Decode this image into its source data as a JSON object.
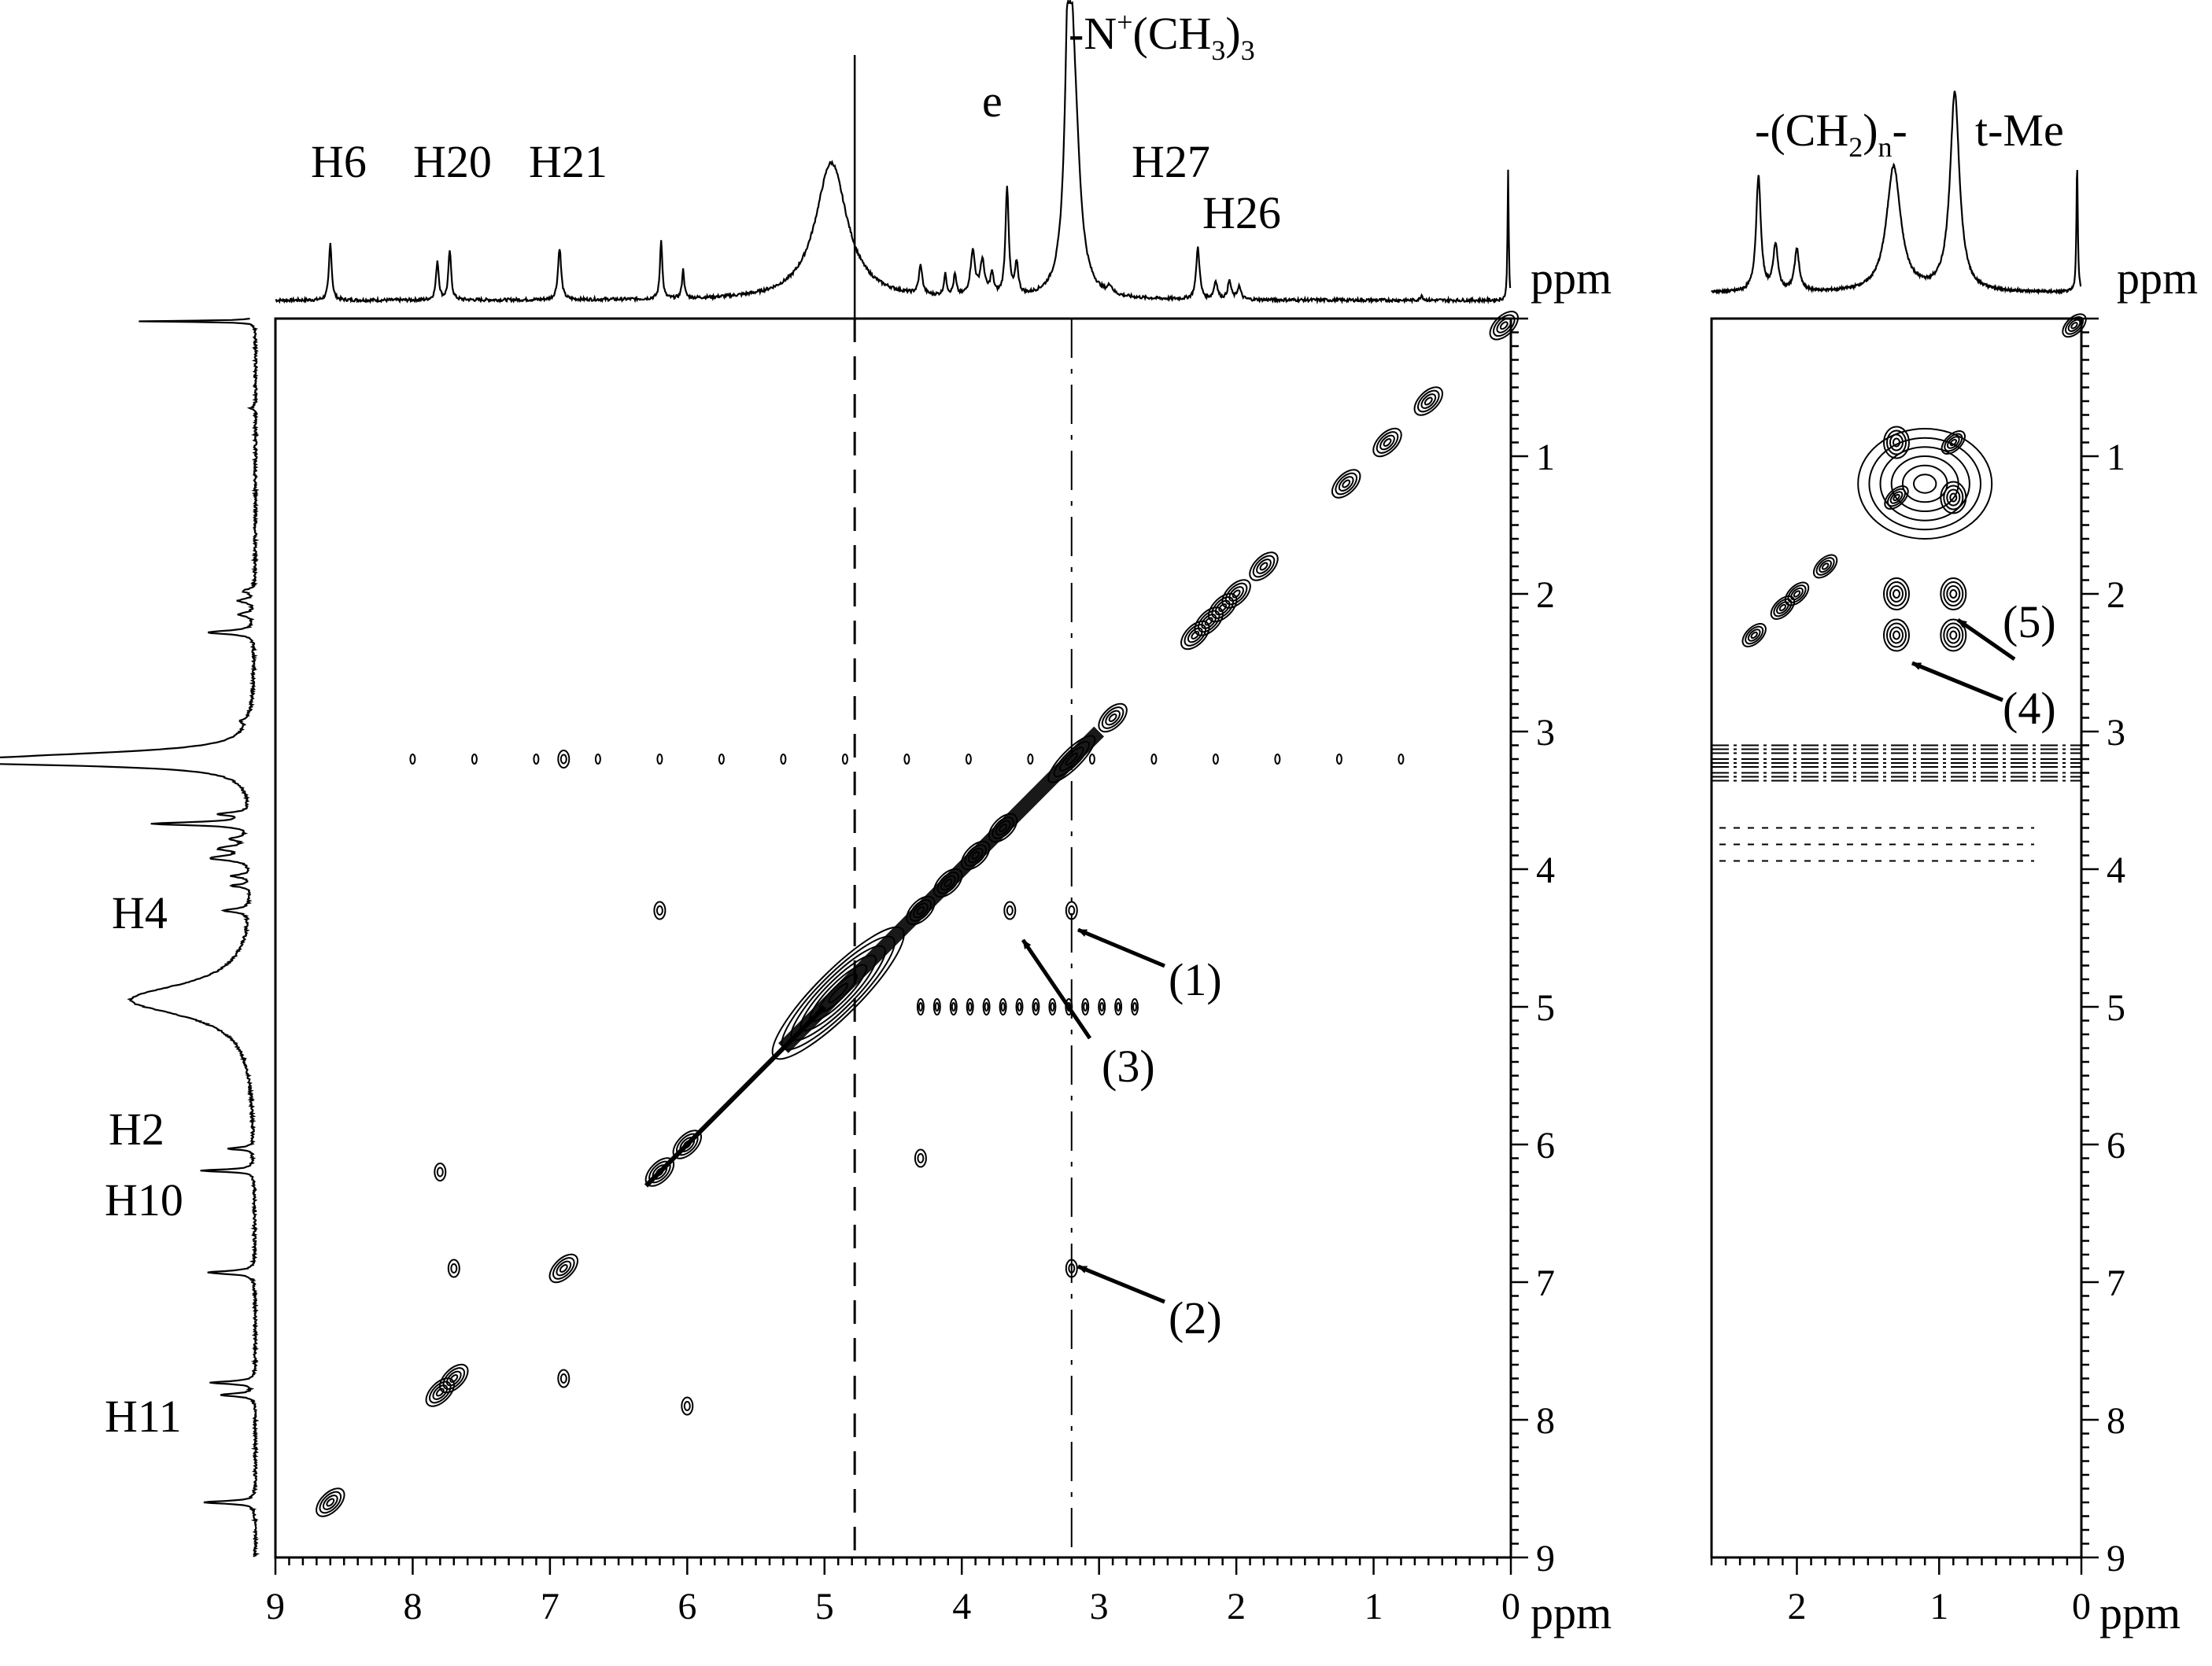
{
  "figure": {
    "axis_unit": "ppm",
    "main_x_ticks": [
      "9",
      "8",
      "7",
      "6",
      "5",
      "4",
      "3",
      "2",
      "1",
      "0"
    ],
    "main_y_ticks": [
      "1",
      "2",
      "3",
      "4",
      "5",
      "6",
      "7",
      "8",
      "9"
    ],
    "inset_x_ticks": [
      "2",
      "1",
      "0"
    ],
    "inset_y_ticks": [
      "1",
      "2",
      "3",
      "4",
      "5",
      "6",
      "7",
      "8",
      "9"
    ]
  },
  "labels": {
    "top_peaks": {
      "h6": "H6",
      "h20": "H20",
      "h21": "H21",
      "e": "e",
      "nme3_prefix": "-N",
      "nme3_sup": "+",
      "nme3_mid": "(CH",
      "nme3_sub1": "3",
      "nme3_close": ")",
      "nme3_sub2": "3",
      "h27": "H27",
      "h26": "H26"
    },
    "inset_peaks": {
      "ch2_prefix": "-(CH",
      "ch2_sub": "2",
      "ch2_close": ")",
      "ch2_n": "n",
      "ch2_dash": "-",
      "tme": "t-Me"
    },
    "left_peaks": {
      "h4": "H4",
      "h2": "H2",
      "h10": "H10",
      "h11": "H11"
    },
    "annotations": {
      "a1": "(1)",
      "a2": "(2)",
      "a3": "(3)",
      "a4": "(4)",
      "a5": "(5)"
    }
  },
  "chart_data": [
    {
      "type": "2d-nmr-contour",
      "title": "",
      "xlabel": "ppm",
      "ylabel": "ppm",
      "xlim": [
        9,
        0
      ],
      "ylim": [
        0,
        9
      ],
      "diagonal_peaks_ppm": [
        8.6,
        7.8,
        7.7,
        6.9,
        6.2,
        6.0,
        4.9,
        4.3,
        4.1,
        3.9,
        3.7,
        3.2,
        2.9,
        2.3,
        2.2,
        2.1,
        2.0,
        1.8,
        1.2,
        0.9,
        0.6,
        0.05
      ],
      "cross_peaks_ppm": [
        {
          "x": 3.2,
          "y": 4.3,
          "label": "(1)"
        },
        {
          "x": 3.2,
          "y": 6.9,
          "label": "(2)"
        },
        {
          "x": 3.65,
          "y": 4.3,
          "label": "(3)"
        },
        {
          "x": 7.7,
          "y": 6.9
        },
        {
          "x": 6.9,
          "y": 7.7
        },
        {
          "x": 7.8,
          "y": 6.2
        },
        {
          "x": 6.2,
          "y": 4.3
        },
        {
          "x": 4.3,
          "y": 6.1
        },
        {
          "x": 6.9,
          "y": 3.2
        },
        {
          "x": 6.0,
          "y": 7.9
        }
      ],
      "solvent_line_ppm": 4.78,
      "nme3_line_ppm": 3.2
    },
    {
      "type": "2d-nmr-contour",
      "title": "",
      "xlabel": "ppm",
      "ylabel": "ppm",
      "xlim": [
        2.6,
        0
      ],
      "ylim": [
        0,
        9
      ],
      "diagonal_peaks_ppm": [
        2.3,
        2.1,
        2.0,
        1.8,
        1.3,
        0.9,
        0.05
      ],
      "cross_peaks_ppm": [
        {
          "x": 1.3,
          "y": 2.3,
          "label": "(4)"
        },
        {
          "x": 0.9,
          "y": 2.3
        },
        {
          "x": 1.3,
          "y": 2.0
        },
        {
          "x": 0.9,
          "y": 2.0,
          "label": "(5)"
        },
        {
          "x": 1.3,
          "y": 0.9
        },
        {
          "x": 0.9,
          "y": 1.3
        }
      ],
      "t1_noise_ppm": [
        3.1,
        3.2,
        3.3
      ]
    }
  ]
}
